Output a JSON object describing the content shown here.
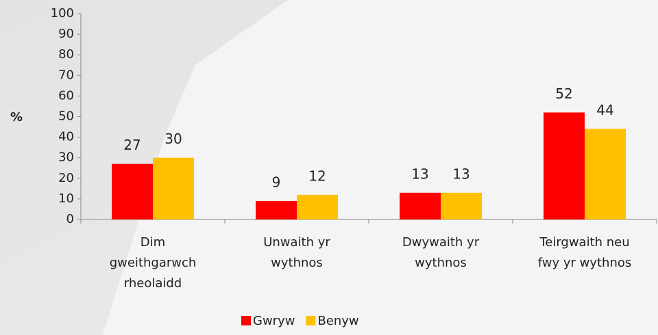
{
  "chart_data": {
    "type": "bar",
    "categories": [
      "Dim gweithgarwch rheolaidd",
      "Unwaith yr wythnos",
      "Dwywaith yr wythnos",
      "Teirgwaith neu fwy yr wythnos"
    ],
    "series": [
      {
        "name": "Gwryw",
        "color": "#ff0000",
        "values": [
          27,
          9,
          13,
          52
        ]
      },
      {
        "name": "Benyw",
        "color": "#ffc000",
        "values": [
          30,
          12,
          13,
          44
        ]
      }
    ],
    "y_label": "%",
    "ylim": [
      0,
      100
    ],
    "yticks": [
      0,
      10,
      20,
      30,
      40,
      50,
      60,
      70,
      80,
      90,
      100
    ],
    "legend": "bottom"
  }
}
